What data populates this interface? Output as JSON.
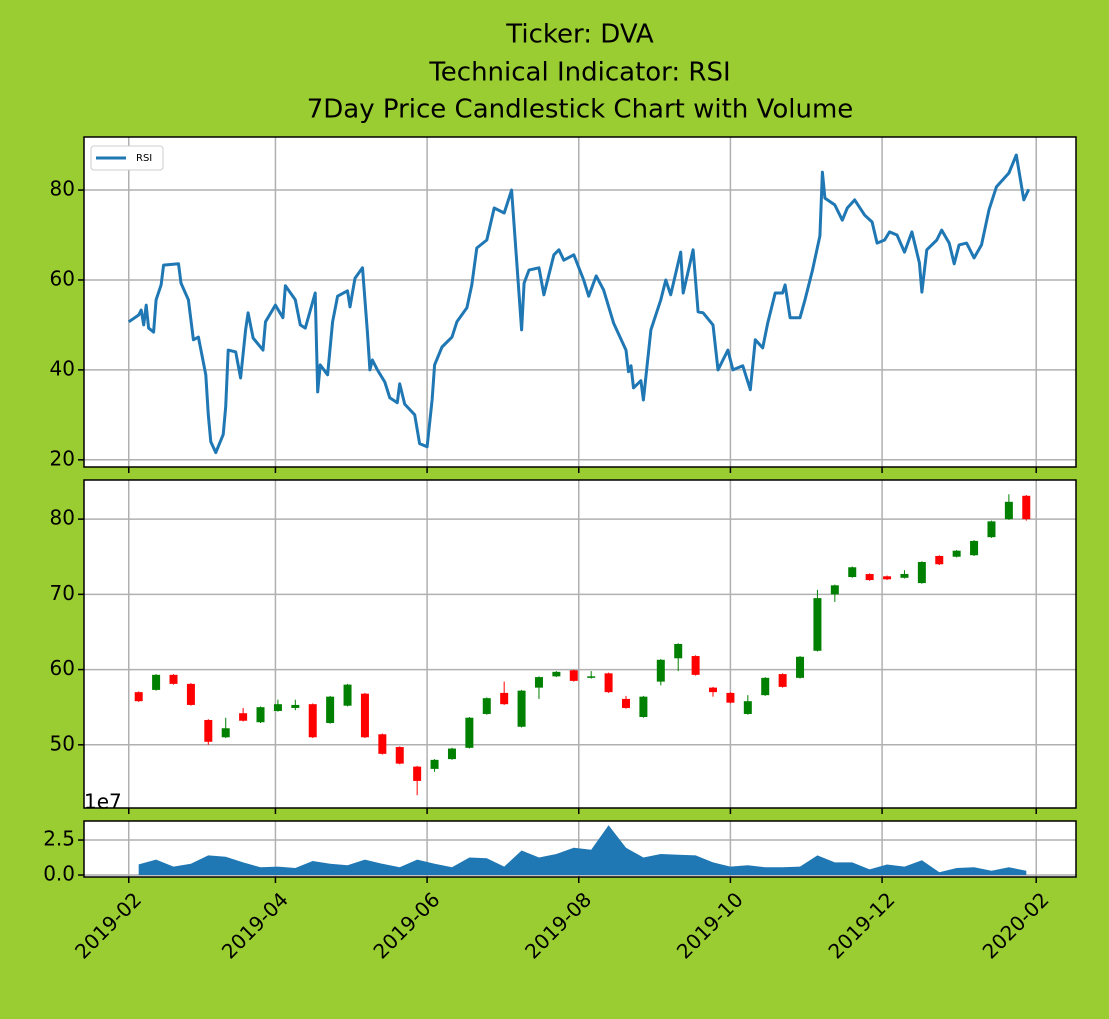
{
  "title": [
    "Ticker: DVA",
    "Technical Indicator: RSI",
    "7Day Price Candlestick Chart with Volume"
  ],
  "chart_data": [
    {
      "type": "line",
      "legend": "upper left",
      "grid": true,
      "xlim": [
        "2019-01-14",
        "2020-02-17"
      ],
      "xticks": [
        "2019-02",
        "2019-04",
        "2019-06",
        "2019-08",
        "2019-10",
        "2019-12",
        "2020-02"
      ],
      "ylim": [
        18.4,
        91.8
      ],
      "yticks": [
        20,
        40,
        60,
        80
      ],
      "x": [
        "2019-02-01",
        "2019-02-05",
        "2019-02-06",
        "2019-02-07",
        "2019-02-08",
        "2019-02-09",
        "2019-02-11",
        "2019-02-12",
        "2019-02-14",
        "2019-02-15",
        "2019-02-21",
        "2019-02-22",
        "2019-02-25",
        "2019-02-27",
        "2019-03-01",
        "2019-03-04",
        "2019-03-05",
        "2019-03-06",
        "2019-03-08",
        "2019-03-11",
        "2019-03-12",
        "2019-03-13",
        "2019-03-16",
        "2019-03-18",
        "2019-03-20",
        "2019-03-21",
        "2019-03-23",
        "2019-03-27",
        "2019-03-28",
        "2019-04-01",
        "2019-04-04",
        "2019-04-05",
        "2019-04-09",
        "2019-04-11",
        "2019-04-13",
        "2019-04-17",
        "2019-04-18",
        "2019-04-19",
        "2019-04-22",
        "2019-04-24",
        "2019-04-26",
        "2019-04-30",
        "2019-05-01",
        "2019-05-03",
        "2019-05-06",
        "2019-05-08",
        "2019-05-09",
        "2019-05-10",
        "2019-05-12",
        "2019-05-15",
        "2019-05-17",
        "2019-05-20",
        "2019-05-21",
        "2019-05-23",
        "2019-05-27",
        "2019-05-29",
        "2019-06-01",
        "2019-06-03",
        "2019-06-04",
        "2019-06-07",
        "2019-06-11",
        "2019-06-13",
        "2019-06-17",
        "2019-06-19",
        "2019-06-21",
        "2019-06-25",
        "2019-06-28",
        "2019-07-02",
        "2019-07-05",
        "2019-07-09",
        "2019-07-10",
        "2019-07-12",
        "2019-07-16",
        "2019-07-18",
        "2019-07-22",
        "2019-07-24",
        "2019-07-26",
        "2019-07-30",
        "2019-08-03",
        "2019-08-05",
        "2019-08-08",
        "2019-08-11",
        "2019-08-15",
        "2019-08-20",
        "2019-08-21",
        "2019-08-22",
        "2019-08-23",
        "2019-08-26",
        "2019-08-27",
        "2019-08-30",
        "2019-09-03",
        "2019-09-05",
        "2019-09-07",
        "2019-09-11",
        "2019-09-12",
        "2019-09-16",
        "2019-09-18",
        "2019-09-20",
        "2019-09-24",
        "2019-09-26",
        "2019-09-30",
        "2019-10-02",
        "2019-10-06",
        "2019-10-09",
        "2019-10-11",
        "2019-10-14",
        "2019-10-16",
        "2019-10-19",
        "2019-10-22",
        "2019-10-23",
        "2019-10-25",
        "2019-10-29",
        "2019-10-31",
        "2019-11-03",
        "2019-11-06",
        "2019-11-07",
        "2019-11-08",
        "2019-11-12",
        "2019-11-15",
        "2019-11-17",
        "2019-11-20",
        "2019-11-24",
        "2019-11-27",
        "2019-11-29",
        "2019-12-02",
        "2019-12-04",
        "2019-12-07",
        "2019-12-10",
        "2019-12-13",
        "2019-12-16",
        "2019-12-17",
        "2019-12-19",
        "2019-12-23",
        "2019-12-25",
        "2019-12-28",
        "2019-12-30",
        "2020-01-01",
        "2020-01-04",
        "2020-01-07",
        "2020-01-10",
        "2020-01-13",
        "2020-01-16",
        "2020-01-21",
        "2020-01-24",
        "2020-01-27",
        "2020-01-29"
      ],
      "series": [
        {
          "name": "RSI",
          "color": "#1f77b4",
          "values": [
            50.7,
            52.2,
            53.3,
            50,
            54.4,
            49.3,
            48.4,
            55.6,
            58.9,
            63.3,
            63.6,
            59.3,
            55.6,
            46.7,
            47.3,
            38.9,
            30,
            24,
            21.6,
            25.6,
            31.8,
            44.4,
            44,
            38.2,
            48.9,
            52.7,
            47.1,
            44.4,
            50.7,
            54.4,
            51.6,
            58.7,
            55.6,
            50,
            49.3,
            57.1,
            35.1,
            41.1,
            38.9,
            50.7,
            56.4,
            57.6,
            54,
            60.4,
            62.7,
            48.4,
            40,
            42.2,
            40,
            37.3,
            33.8,
            32.7,
            36.9,
            32.4,
            30,
            23.6,
            22.9,
            33.3,
            41.1,
            45.1,
            47.3,
            50.7,
            53.8,
            58.9,
            67.1,
            68.9,
            76,
            74.9,
            80,
            48.9,
            59.3,
            62.2,
            62.7,
            56.7,
            65.6,
            66.7,
            64.4,
            65.6,
            60,
            56.4,
            60.9,
            57.8,
            50.4,
            44.4,
            39.6,
            40.9,
            36,
            37.6,
            33.3,
            48.9,
            55.6,
            60,
            56.7,
            66.2,
            57.1,
            66.7,
            52.9,
            52.7,
            50,
            40,
            44.4,
            40,
            40.9,
            35.6,
            46.7,
            44.9,
            50.4,
            57.1,
            57.1,
            58.9,
            51.6,
            51.6,
            55.6,
            62.2,
            69.8,
            84,
            78.2,
            76.7,
            73.3,
            76,
            77.8,
            74.4,
            72.9,
            68.2,
            68.9,
            70.7,
            70,
            66.2,
            70.7,
            63.8,
            57.3,
            66.7,
            68.9,
            71.1,
            68.2,
            63.6,
            67.8,
            68.2,
            64.9,
            67.8,
            75.6,
            80.7,
            83.8,
            87.8,
            77.8,
            80.2
          ]
        }
      ]
    },
    {
      "type": "candlestick",
      "grid": true,
      "up_color": "green",
      "down_color": "red",
      "xlim": [
        "2019-01-14",
        "2020-02-17"
      ],
      "xticks": [
        "2019-02",
        "2019-04",
        "2019-06",
        "2019-08",
        "2019-10",
        "2019-12",
        "2020-02"
      ],
      "ylim": [
        41.6,
        85.2
      ],
      "yticks": [
        50,
        60,
        70,
        80
      ],
      "x": [
        "2019-02-05",
        "2019-02-12",
        "2019-02-19",
        "2019-02-26",
        "2019-03-05",
        "2019-03-12",
        "2019-03-19",
        "2019-03-26",
        "2019-04-02",
        "2019-04-09",
        "2019-04-16",
        "2019-04-23",
        "2019-04-30",
        "2019-05-07",
        "2019-05-14",
        "2019-05-21",
        "2019-05-28",
        "2019-06-04",
        "2019-06-11",
        "2019-06-18",
        "2019-06-25",
        "2019-07-02",
        "2019-07-09",
        "2019-07-16",
        "2019-07-23",
        "2019-07-30",
        "2019-08-06",
        "2019-08-13",
        "2019-08-20",
        "2019-08-27",
        "2019-09-03",
        "2019-09-10",
        "2019-09-17",
        "2019-09-24",
        "2019-10-01",
        "2019-10-08",
        "2019-10-15",
        "2019-10-22",
        "2019-10-29",
        "2019-11-05",
        "2019-11-12",
        "2019-11-19",
        "2019-11-26",
        "2019-12-03",
        "2019-12-10",
        "2019-12-17",
        "2019-12-24",
        "2019-12-31",
        "2020-01-07",
        "2020-01-14",
        "2020-01-21",
        "2020-01-28"
      ],
      "open": [
        57.0,
        57.3,
        59.3,
        58.1,
        53.3,
        51.0,
        54.2,
        53.0,
        54.5,
        54.9,
        55.4,
        52.9,
        55.2,
        56.8,
        51.4,
        49.7,
        47.1,
        46.8,
        48.1,
        49.6,
        54.1,
        56.9,
        52.4,
        57.6,
        59.1,
        59.9,
        58.9,
        59.5,
        56.1,
        53.7,
        58.4,
        61.5,
        61.8,
        57.6,
        56.9,
        54.1,
        56.6,
        59.4,
        58.9,
        62.5,
        70.0,
        72.3,
        72.7,
        72.4,
        72.2,
        71.5,
        75.1,
        75.0,
        75.2,
        77.6,
        80.0,
        83.1
      ],
      "high": [
        57.1,
        59.4,
        59.4,
        58.2,
        53.4,
        53.6,
        54.9,
        55.1,
        56.0,
        56.0,
        55.5,
        56.5,
        58.1,
        56.9,
        51.5,
        49.8,
        47.2,
        48.1,
        49.6,
        53.7,
        56.3,
        58.4,
        57.3,
        59.1,
        59.8,
        60.0,
        59.8,
        59.6,
        56.5,
        56.5,
        61.4,
        63.5,
        61.9,
        57.7,
        57.0,
        56.6,
        59.0,
        59.5,
        61.8,
        70.6,
        71.3,
        73.7,
        72.8,
        72.5,
        73.2,
        74.4,
        75.2,
        75.9,
        77.2,
        79.8,
        83.3,
        83.2
      ],
      "low": [
        55.7,
        57.2,
        58.0,
        55.2,
        50.0,
        50.9,
        53.1,
        52.9,
        54.4,
        54.6,
        50.9,
        52.8,
        55.1,
        50.9,
        48.7,
        47.4,
        43.3,
        46.4,
        48.0,
        49.5,
        54.0,
        55.3,
        52.3,
        56.1,
        59.0,
        58.4,
        58.8,
        56.9,
        54.8,
        53.6,
        57.9,
        59.8,
        59.2,
        56.4,
        55.5,
        54.0,
        56.5,
        57.6,
        58.8,
        62.4,
        69.0,
        72.2,
        71.8,
        71.9,
        72.1,
        71.4,
        73.9,
        74.9,
        75.1,
        77.5,
        79.9,
        79.8
      ],
      "close": [
        55.8,
        59.3,
        58.1,
        55.3,
        50.4,
        52.2,
        53.2,
        55.0,
        55.4,
        55.3,
        51.0,
        56.4,
        58.0,
        51.0,
        48.8,
        47.5,
        45.2,
        48.0,
        49.5,
        53.6,
        56.2,
        55.4,
        57.2,
        59.0,
        59.7,
        58.5,
        59.1,
        57.0,
        54.9,
        56.4,
        61.3,
        63.4,
        59.3,
        57.0,
        55.6,
        55.8,
        58.9,
        57.7,
        61.7,
        69.5,
        71.2,
        73.6,
        71.9,
        72.0,
        72.7,
        74.3,
        74.0,
        75.8,
        77.1,
        79.7,
        82.3,
        80.0
      ]
    },
    {
      "type": "area",
      "grid": true,
      "color": "#1f77b4",
      "offset_text": "1e7",
      "xlim": [
        "2019-01-14",
        "2020-02-17"
      ],
      "xticks": [
        "2019-02",
        "2019-04",
        "2019-06",
        "2019-08",
        "2019-10",
        "2019-12",
        "2020-02"
      ],
      "ylim": [
        -0.14,
        3.86
      ],
      "yticks": [
        {
          "value": 0,
          "label": "0.0"
        },
        2.5
      ],
      "x": [
        "2019-02-05",
        "2019-02-12",
        "2019-02-19",
        "2019-02-26",
        "2019-03-05",
        "2019-03-12",
        "2019-03-19",
        "2019-03-26",
        "2019-04-02",
        "2019-04-09",
        "2019-04-16",
        "2019-04-23",
        "2019-04-30",
        "2019-05-07",
        "2019-05-14",
        "2019-05-21",
        "2019-05-28",
        "2019-06-04",
        "2019-06-11",
        "2019-06-18",
        "2019-06-25",
        "2019-07-02",
        "2019-07-09",
        "2019-07-16",
        "2019-07-23",
        "2019-07-30",
        "2019-08-06",
        "2019-08-13",
        "2019-08-20",
        "2019-08-27",
        "2019-09-03",
        "2019-09-10",
        "2019-09-17",
        "2019-09-24",
        "2019-10-01",
        "2019-10-08",
        "2019-10-15",
        "2019-10-22",
        "2019-10-29",
        "2019-11-05",
        "2019-11-12",
        "2019-11-19",
        "2019-11-26",
        "2019-12-03",
        "2019-12-10",
        "2019-12-17",
        "2019-12-24",
        "2019-12-31",
        "2020-01-07",
        "2020-01-14",
        "2020-01-21",
        "2020-01-28"
      ],
      "values": [
        0.76,
        1.1,
        0.6,
        0.8,
        1.4,
        1.3,
        0.9,
        0.55,
        0.6,
        0.5,
        1.0,
        0.8,
        0.7,
        1.1,
        0.8,
        0.55,
        1.1,
        0.8,
        0.55,
        1.25,
        1.2,
        0.6,
        1.75,
        1.25,
        1.5,
        1.95,
        1.8,
        3.55,
        1.95,
        1.25,
        1.5,
        1.45,
        1.4,
        0.9,
        0.6,
        0.7,
        0.55,
        0.55,
        0.6,
        1.4,
        0.9,
        0.9,
        0.4,
        0.75,
        0.6,
        1.05,
        0.2,
        0.5,
        0.55,
        0.3,
        0.55,
        0.3
      ]
    }
  ]
}
